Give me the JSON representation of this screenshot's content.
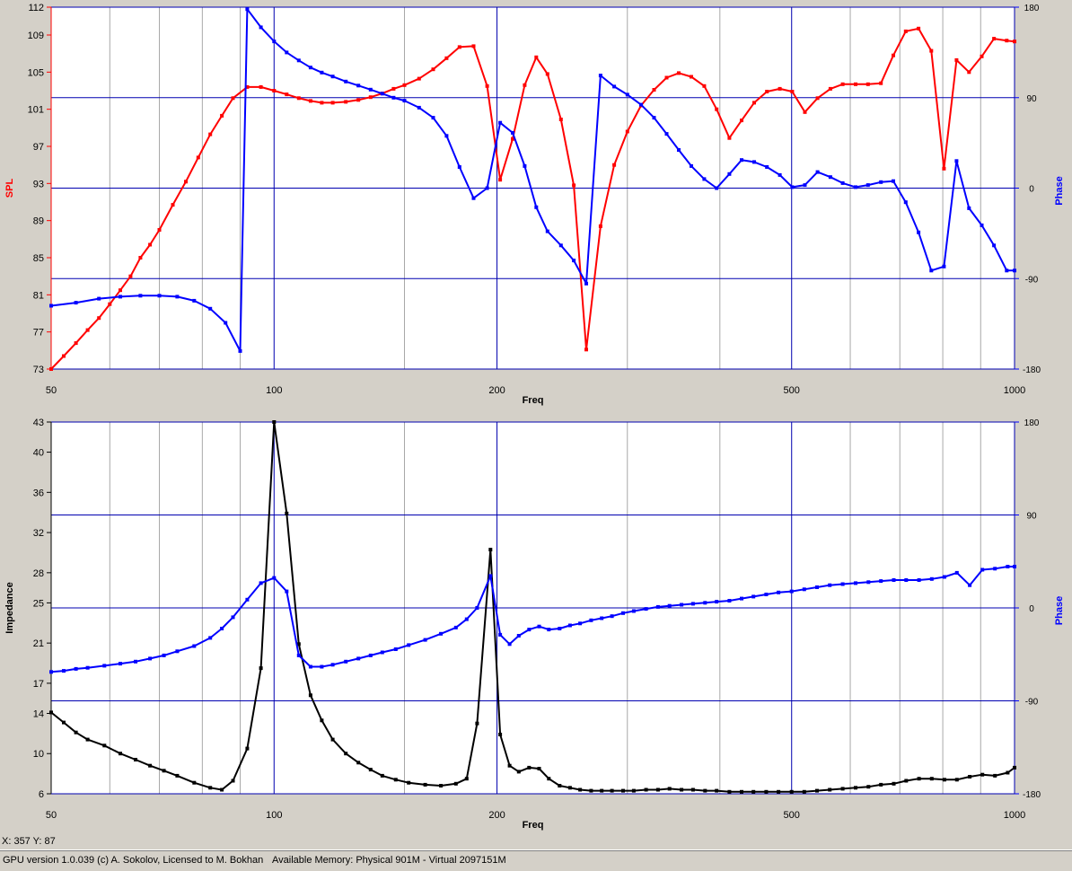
{
  "status": {
    "coords": "X: 357  Y: 87",
    "version": "GPU version 1.0.039 (c) A. Sokolov, Licensed to M. Bokhan",
    "memory": "Available Memory: Physical 901M - Virtual 2097151M"
  },
  "colors": {
    "background": "#d4d0c8",
    "plot_bg": "#ffffff",
    "grid_major": "#0000b0",
    "grid_minor": "#a8a8a8",
    "spl": "#ff0000",
    "phase": "#0000ff",
    "impedance": "#000000"
  },
  "chart_data": [
    {
      "type": "line",
      "xlabel": "Freq",
      "ylabel": "SPL",
      "y2label": "Phase",
      "xscale": "log",
      "xlim": [
        50,
        1000
      ],
      "ylim": [
        73,
        112
      ],
      "y2lim": [
        -180,
        180
      ],
      "xticks": [
        "50",
        "100",
        "200",
        "500",
        "1000"
      ],
      "yticks": [
        "73",
        "77",
        "81",
        "85",
        "89",
        "93",
        "97",
        "101",
        "105",
        "109",
        "112"
      ],
      "y2ticks": [
        "180",
        "90",
        "0",
        "-90",
        "-180"
      ],
      "series": [
        {
          "name": "SPL",
          "axis": "left",
          "color": "#ff0000",
          "x": [
            50,
            52,
            54,
            56,
            58,
            60,
            62,
            64,
            66,
            68,
            70,
            73,
            76,
            79,
            82,
            85,
            88,
            92,
            96,
            100,
            104,
            108,
            112,
            116,
            120,
            125,
            130,
            135,
            140,
            145,
            150,
            157,
            164,
            171,
            178,
            186,
            194,
            202,
            210,
            218,
            226,
            234,
            244,
            254,
            264,
            276,
            288,
            300,
            313,
            326,
            339,
            352,
            366,
            381,
            396,
            412,
            428,
            445,
            463,
            482,
            501,
            521,
            542,
            564,
            586,
            610,
            634,
            660,
            686,
            713,
            742,
            772,
            803,
            835,
            868,
            903,
            938,
            976,
            1000
          ],
          "y": [
            73.0,
            74.4,
            75.8,
            77.2,
            78.5,
            80.0,
            81.5,
            83.0,
            85.0,
            86.4,
            88.0,
            90.7,
            93.2,
            95.8,
            98.3,
            100.3,
            102.2,
            103.4,
            103.4,
            103.0,
            102.6,
            102.2,
            101.9,
            101.7,
            101.7,
            101.8,
            102.0,
            102.3,
            102.7,
            103.2,
            103.6,
            104.3,
            105.3,
            106.5,
            107.7,
            107.8,
            103.5,
            93.4,
            97.8,
            103.6,
            106.6,
            104.8,
            99.9,
            92.8,
            75.1,
            88.4,
            95.0,
            98.6,
            101.4,
            103.1,
            104.4,
            104.9,
            104.5,
            103.5,
            101.0,
            97.9,
            99.8,
            101.7,
            102.9,
            103.2,
            102.9,
            100.7,
            102.2,
            103.2,
            103.7,
            103.7,
            103.7,
            103.8,
            106.8,
            109.4,
            109.7,
            107.3,
            94.6,
            106.3,
            105.0,
            106.7,
            108.6,
            108.4,
            108.3
          ]
        },
        {
          "name": "Phase",
          "axis": "right",
          "color": "#0000ff",
          "x": [
            50,
            54,
            58,
            62,
            66,
            70,
            74,
            78,
            82,
            86,
            90,
            92,
            96,
            100,
            104,
            108,
            112,
            116,
            120,
            125,
            130,
            135,
            140,
            145,
            150,
            157,
            164,
            171,
            178,
            186,
            194,
            202,
            210,
            218,
            226,
            234,
            244,
            254,
            264,
            276,
            288,
            300,
            313,
            326,
            339,
            352,
            366,
            381,
            396,
            412,
            428,
            445,
            463,
            482,
            501,
            521,
            542,
            564,
            586,
            610,
            634,
            660,
            686,
            713,
            742,
            772,
            803,
            835,
            868,
            903,
            938,
            976,
            1000
          ],
          "y": [
            -117,
            -114,
            -110,
            -108,
            -107,
            -107,
            -108,
            -112,
            -120,
            -134,
            -162,
            178,
            160,
            146,
            135,
            127,
            120,
            115,
            111,
            106,
            102,
            98,
            94,
            90,
            87,
            80,
            70,
            52,
            21,
            -10,
            0,
            65,
            55,
            22,
            -19,
            -43,
            -57,
            -72,
            -95,
            112,
            101,
            93,
            83,
            70,
            54,
            38,
            22,
            9,
            0,
            14,
            28,
            26,
            21,
            13,
            1,
            3,
            16,
            11,
            5,
            1,
            3,
            6,
            7,
            -14,
            -44,
            -82,
            -78,
            27,
            -20,
            -37,
            -57,
            -82,
            -82
          ]
        }
      ]
    },
    {
      "type": "line",
      "xlabel": "Freq",
      "ylabel": "Impedance",
      "y2label": "Phase",
      "xscale": "log",
      "xlim": [
        50,
        1000
      ],
      "ylim": [
        6,
        43
      ],
      "y2lim": [
        -180,
        180
      ],
      "xticks": [
        "50",
        "100",
        "200",
        "500",
        "1000"
      ],
      "yticks": [
        "6",
        "10",
        "14",
        "17",
        "21",
        "25",
        "28",
        "32",
        "36",
        "40",
        "43"
      ],
      "y2ticks": [
        "180",
        "90",
        "0",
        "-90",
        "-180"
      ],
      "series": [
        {
          "name": "Impedance",
          "axis": "left",
          "color": "#000000",
          "x": [
            50,
            52,
            54,
            56,
            59,
            62,
            65,
            68,
            71,
            74,
            78,
            82,
            85,
            88,
            92,
            96,
            100,
            104,
            108,
            112,
            116,
            120,
            125,
            130,
            135,
            140,
            146,
            152,
            160,
            168,
            176,
            182,
            188,
            196,
            202,
            208,
            214,
            221,
            228,
            235,
            243,
            251,
            259,
            268,
            277,
            286,
            296,
            306,
            318,
            330,
            342,
            355,
            368,
            382,
            396,
            412,
            428,
            444,
            462,
            480,
            500,
            520,
            541,
            563,
            586,
            610,
            635,
            660,
            687,
            714,
            743,
            773,
            804,
            836,
            870,
            905,
            941,
            979,
            1000
          ],
          "y": [
            14.1,
            13.1,
            12.1,
            11.4,
            10.8,
            10.0,
            9.4,
            8.8,
            8.3,
            7.8,
            7.1,
            6.6,
            6.4,
            7.3,
            10.5,
            18.5,
            43.0,
            33.9,
            20.9,
            15.8,
            13.3,
            11.4,
            10.0,
            9.1,
            8.4,
            7.8,
            7.4,
            7.1,
            6.9,
            6.8,
            7.0,
            7.5,
            13.0,
            30.3,
            11.9,
            8.8,
            8.2,
            8.6,
            8.5,
            7.5,
            6.8,
            6.6,
            6.4,
            6.3,
            6.3,
            6.3,
            6.3,
            6.3,
            6.4,
            6.4,
            6.5,
            6.4,
            6.4,
            6.3,
            6.3,
            6.2,
            6.2,
            6.2,
            6.2,
            6.2,
            6.2,
            6.2,
            6.3,
            6.4,
            6.5,
            6.6,
            6.7,
            6.9,
            7.0,
            7.3,
            7.5,
            7.5,
            7.4,
            7.4,
            7.7,
            7.9,
            7.8,
            8.1,
            8.6
          ]
        },
        {
          "name": "Phase",
          "axis": "right",
          "color": "#0000ff",
          "x": [
            50,
            52,
            54,
            56,
            59,
            62,
            65,
            68,
            71,
            74,
            78,
            82,
            85,
            88,
            92,
            96,
            100,
            104,
            108,
            112,
            116,
            120,
            125,
            130,
            135,
            140,
            146,
            152,
            160,
            168,
            176,
            182,
            188,
            196,
            202,
            208,
            214,
            221,
            228,
            235,
            243,
            251,
            259,
            268,
            277,
            286,
            296,
            306,
            318,
            330,
            342,
            355,
            368,
            382,
            396,
            412,
            428,
            444,
            462,
            480,
            500,
            520,
            541,
            563,
            586,
            610,
            635,
            660,
            687,
            714,
            743,
            773,
            804,
            836,
            870,
            905,
            941,
            979,
            1000
          ],
          "y": [
            -62,
            -61,
            -59,
            -58,
            -56,
            -54,
            -52,
            -49,
            -46,
            -42,
            -37,
            -29,
            -20,
            -9,
            8,
            24,
            29,
            16,
            -46,
            -57,
            -57,
            -55,
            -52,
            -49,
            -46,
            -43,
            -40,
            -36,
            -31,
            -25,
            -19,
            -11,
            0,
            31,
            -26,
            -35,
            -27,
            -21,
            -18,
            -21,
            -20,
            -17,
            -15,
            -12,
            -10,
            -8,
            -5,
            -3,
            -1,
            1,
            2,
            3,
            4,
            5,
            6,
            7,
            9,
            11,
            13,
            15,
            16,
            18,
            20,
            22,
            23,
            24,
            25,
            26,
            27,
            27,
            27,
            28,
            30,
            34,
            22,
            37,
            38,
            40,
            40
          ]
        }
      ]
    }
  ]
}
